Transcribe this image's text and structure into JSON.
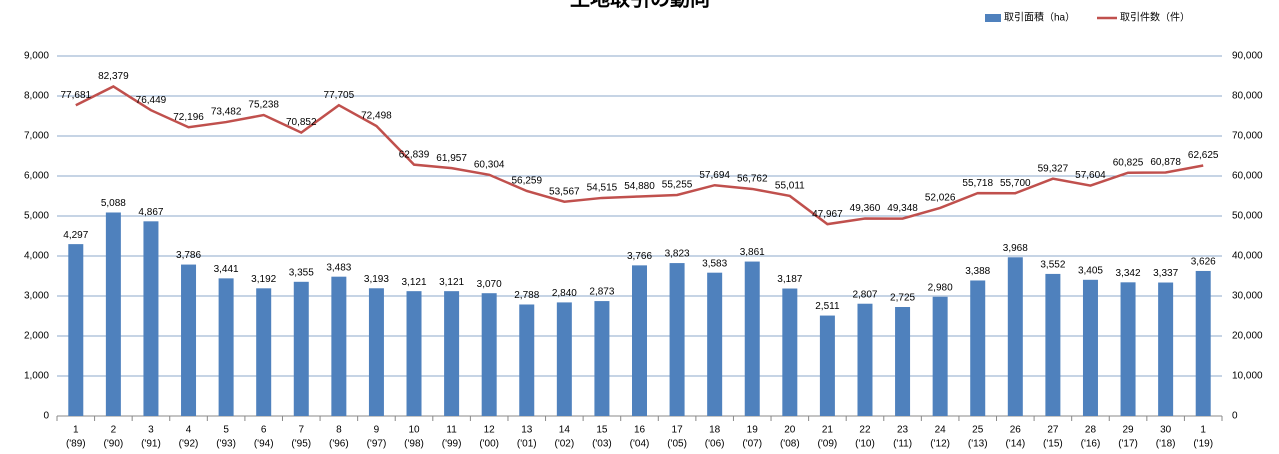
{
  "chart_data": {
    "type": "bar_line",
    "title": "土地取引の動向",
    "categories": [
      [
        "1",
        "('89)"
      ],
      [
        "2",
        "('90)"
      ],
      [
        "3",
        "('91)"
      ],
      [
        "4",
        "('92)"
      ],
      [
        "5",
        "('93)"
      ],
      [
        "6",
        "('94)"
      ],
      [
        "7",
        "('95)"
      ],
      [
        "8",
        "('96)"
      ],
      [
        "9",
        "('97)"
      ],
      [
        "10",
        "('98)"
      ],
      [
        "11",
        "('99)"
      ],
      [
        "12",
        "('00)"
      ],
      [
        "13",
        "('01)"
      ],
      [
        "14",
        "('02)"
      ],
      [
        "15",
        "('03)"
      ],
      [
        "16",
        "('04)"
      ],
      [
        "17",
        "('05)"
      ],
      [
        "18",
        "('06)"
      ],
      [
        "19",
        "('07)"
      ],
      [
        "20",
        "('08)"
      ],
      [
        "21",
        "('09)"
      ],
      [
        "22",
        "('10)"
      ],
      [
        "23",
        "('11)"
      ],
      [
        "24",
        "('12)"
      ],
      [
        "25",
        "('13)"
      ],
      [
        "26",
        "('14)"
      ],
      [
        "27",
        "('15)"
      ],
      [
        "28",
        "('16)"
      ],
      [
        "29",
        "('17)"
      ],
      [
        "30",
        "('18)"
      ],
      [
        "1",
        "('19)"
      ]
    ],
    "series": [
      {
        "name": "取引面積（ha）",
        "type": "bar",
        "color": "#4f81bd",
        "values": [
          4297,
          5088,
          4867,
          3786,
          3441,
          3192,
          3355,
          3483,
          3193,
          3121,
          3121,
          3070,
          2788,
          2840,
          2873,
          3766,
          3823,
          3583,
          3861,
          3187,
          2511,
          2807,
          2725,
          2980,
          3388,
          3968,
          3552,
          3405,
          3342,
          3337,
          3626
        ],
        "value_labels": [
          "4,297",
          "5,088",
          "4,867",
          "3,786",
          "3,441",
          "3,192",
          "3,355",
          "3,483",
          "3,193",
          "3,121",
          "3,121",
          "3,070",
          "2,788",
          "2,840",
          "2,873",
          "3,766",
          "3,823",
          "3,583",
          "3,861",
          "3,187",
          "2,511",
          "2,807",
          "2,725",
          "2,980",
          "3,388",
          "3,968",
          "3,552",
          "3,405",
          "3,342",
          "3,337",
          "3,626"
        ]
      },
      {
        "name": "取引件数（件）",
        "type": "line",
        "axis": "y2",
        "color": "#c0504d",
        "values": [
          77681,
          82379,
          76449,
          72196,
          73482,
          75238,
          70852,
          77705,
          72498,
          62839,
          61957,
          60304,
          56259,
          53567,
          54515,
          54880,
          55255,
          57694,
          56762,
          55011,
          47967,
          49360,
          49348,
          52026,
          55718,
          55700,
          59327,
          57604,
          60825,
          60878,
          62625
        ],
        "value_labels": [
          "77,681",
          "82,379",
          "76,449",
          "72,196",
          "73,482",
          "75,238",
          "70,852",
          "77,705",
          "72,498",
          "62,839",
          "61,957",
          "60,304",
          "56,259",
          "53,567",
          "54,515",
          "54,880",
          "55,255",
          "57,694",
          "56,762",
          "55,011",
          "47,967",
          "49,360",
          "49,348",
          "52,026",
          "55,718",
          "55,700",
          "59,327",
          "57,604",
          "60,825",
          "60,878",
          "62,625"
        ]
      }
    ],
    "ylim": [
      0,
      9000
    ],
    "yticks": [
      0,
      {
        "value": 1000,
        "label": "1,000"
      },
      {
        "value": 2000,
        "label": "2,000"
      },
      {
        "value": 3000,
        "label": "3,000"
      },
      {
        "value": 4000,
        "label": "4,000"
      },
      {
        "value": 5000,
        "label": "5,000"
      },
      {
        "value": 6000,
        "label": "6,000"
      },
      {
        "value": 7000,
        "label": "7,000"
      },
      {
        "value": 8000,
        "label": "8,000"
      },
      {
        "value": 9000,
        "label": "9,000"
      }
    ],
    "y2lim": [
      0,
      90000
    ],
    "y2ticks": [
      0,
      {
        "value": 10000,
        "label": "10,000"
      },
      {
        "value": 20000,
        "label": "20,000"
      },
      {
        "value": 30000,
        "label": "30,000"
      },
      {
        "value": 40000,
        "label": "40,000"
      },
      {
        "value": 50000,
        "label": "50,000"
      },
      {
        "value": 60000,
        "label": "60,000"
      },
      {
        "value": 70000,
        "label": "70,000"
      },
      {
        "value": 80000,
        "label": "80,000"
      },
      {
        "value": 90000,
        "label": "90,000"
      }
    ],
    "grid": true,
    "legend": "top-right"
  }
}
